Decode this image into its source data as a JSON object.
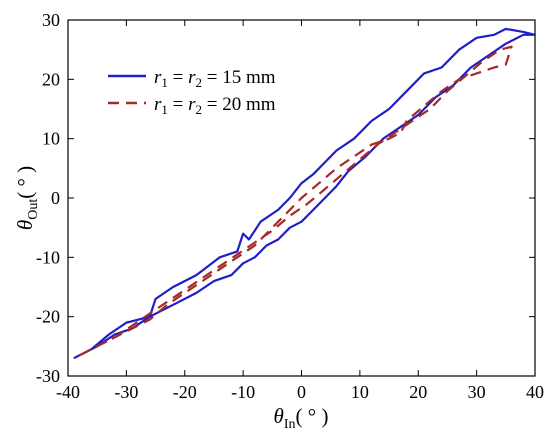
{
  "chart_data": {
    "type": "line",
    "xlabel": {
      "symbol": "θ",
      "subscript": "In",
      "unit": "( ° )"
    },
    "ylabel": {
      "symbol": "θ",
      "subscript": "Out",
      "unit": "( ° )"
    },
    "xlim": [
      -40,
      40
    ],
    "ylim": [
      -30,
      30
    ],
    "xticks": [
      "-40",
      "-30",
      "-20",
      "-10",
      "0",
      "10",
      "20",
      "30",
      "40"
    ],
    "yticks": [
      "-30",
      "-20",
      "-10",
      "0",
      "10",
      "20",
      "30"
    ],
    "grid": false,
    "legend_position": "top-left",
    "series": [
      {
        "legend": {
          "r1": "r",
          "r1_sub": "1",
          "eq": " = ",
          "r2": "r",
          "r2_sub": "2",
          "value": " = 15 mm"
        },
        "color": "#1f1fc8",
        "style": "solid",
        "x": [
          -39,
          -36,
          -33,
          -30,
          -26,
          -25,
          -22,
          -18,
          -14,
          -11,
          -10,
          -9,
          -7,
          -4,
          -2,
          0,
          2,
          4,
          6,
          9,
          12,
          15,
          18,
          21,
          24,
          27,
          30,
          33,
          35,
          38,
          40,
          38,
          35,
          32,
          29,
          26,
          23,
          20,
          17,
          14,
          11,
          8,
          6,
          4,
          2,
          0,
          -2,
          -4,
          -6,
          -8,
          -10,
          -12,
          -15,
          -18,
          -22,
          -26,
          -29,
          -32,
          -35,
          -38,
          -39
        ],
        "y": [
          -27,
          -25.5,
          -23,
          -21,
          -20,
          -17,
          -15,
          -13,
          -10,
          -9,
          -6,
          -7,
          -4,
          -2,
          0,
          2.5,
          4,
          6,
          8,
          10,
          13,
          15,
          18,
          21,
          22,
          25,
          27,
          27.5,
          28.5,
          28,
          27.5,
          27.5,
          26,
          24,
          22,
          19,
          17,
          14,
          12,
          10,
          7,
          4.5,
          2,
          0,
          -2,
          -4,
          -5,
          -7,
          -8,
          -10,
          -11,
          -13,
          -14,
          -16,
          -18,
          -20,
          -22,
          -23,
          -25,
          -26.5,
          -27
        ]
      },
      {
        "legend": {
          "r1": "r",
          "r1_sub": "1",
          "eq": " = ",
          "r2": "r",
          "r2_sub": "2",
          "value": " = 20 mm"
        },
        "color": "#a52a2a",
        "style": "dashed",
        "x": [
          -38,
          -35,
          -32,
          -29,
          -26,
          -23,
          -20,
          -17,
          -14,
          -11,
          -8,
          -6,
          -3,
          0,
          3,
          6,
          9,
          12,
          15,
          17,
          18,
          21,
          24,
          27,
          30,
          33,
          35,
          36,
          34,
          31,
          28,
          25,
          22,
          19,
          16,
          13,
          10,
          7,
          4,
          1,
          -2,
          -5,
          -8,
          -11,
          -14,
          -17,
          -20,
          -23,
          -26,
          -29,
          -32,
          -35,
          -38
        ],
        "y": [
          -26.5,
          -25,
          -23.5,
          -22,
          -20.5,
          -18,
          -16,
          -14,
          -12,
          -10,
          -8,
          -6,
          -3,
          0,
          2.5,
          5,
          7,
          9,
          10,
          11,
          13,
          15.5,
          18,
          20,
          21,
          22,
          22.5,
          25.5,
          25,
          23,
          20.5,
          18,
          15,
          13,
          11,
          9,
          6.5,
          4,
          1.5,
          -1,
          -3,
          -5.5,
          -7.5,
          -9.5,
          -11.5,
          -13.5,
          -15.5,
          -17.5,
          -19.5,
          -21.5,
          -23.5,
          -25,
          -26.5
        ]
      }
    ]
  }
}
